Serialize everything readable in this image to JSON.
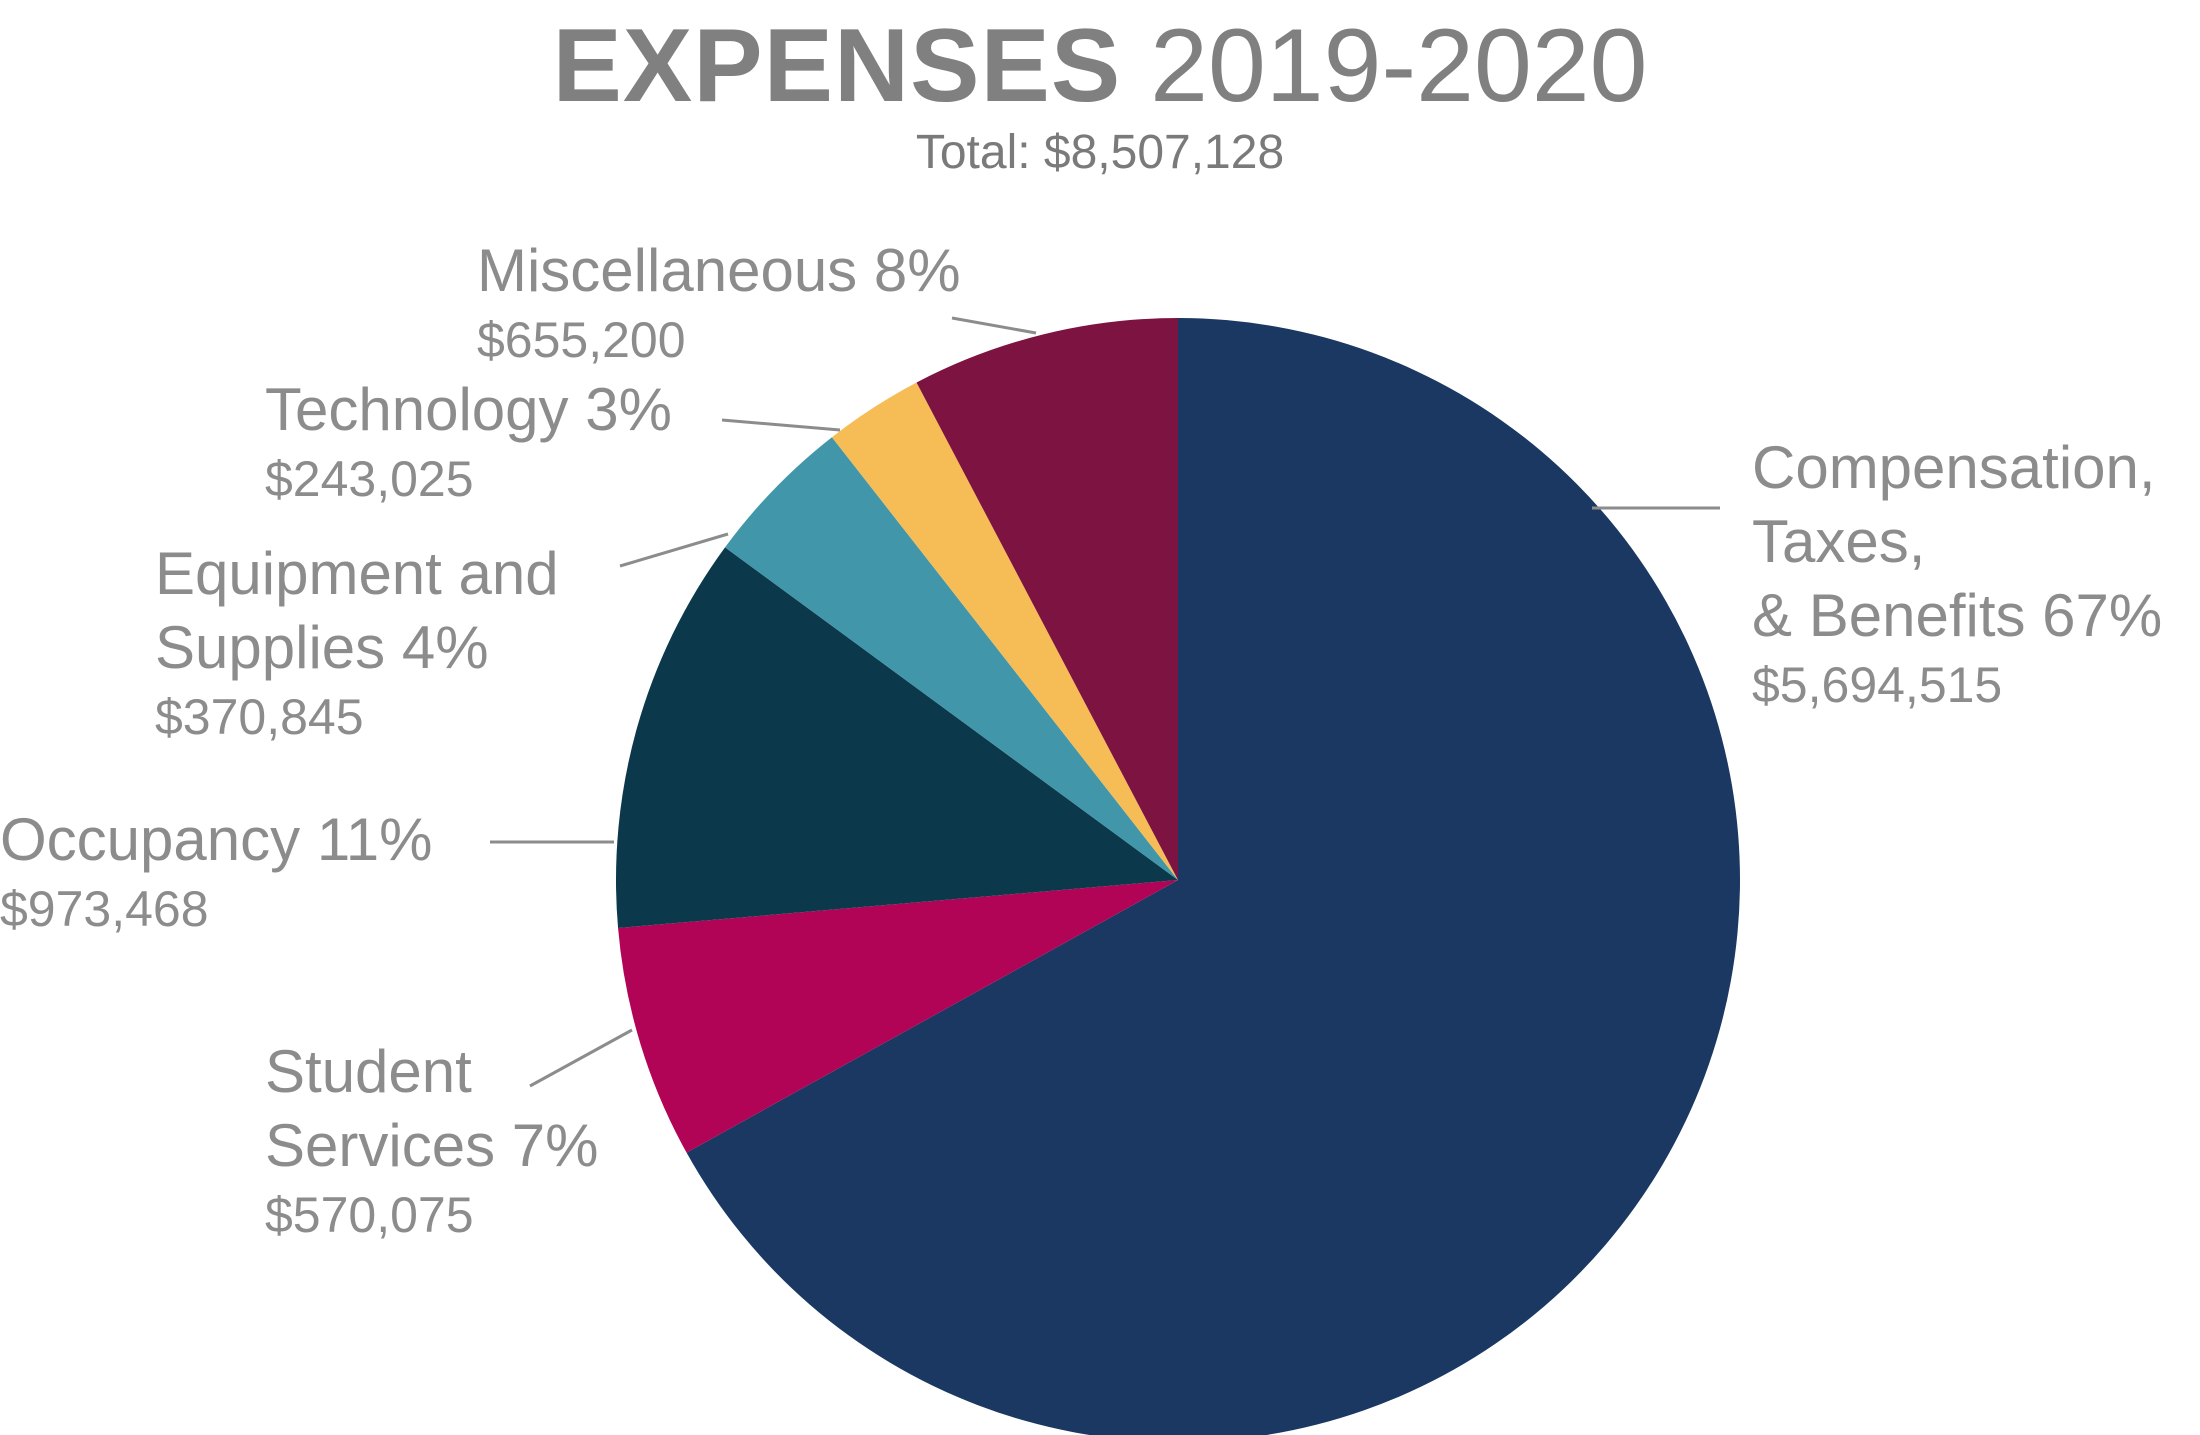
{
  "title": {
    "bold": "EXPENSES",
    "light": "2019-2020"
  },
  "subtitle": "Total: $8,507,128",
  "chart_data": {
    "type": "pie",
    "title": "EXPENSES 2019-2020",
    "subtitle": "Total: $8,507,128",
    "start_angle_deg": 0,
    "direction": "clockwise",
    "slices": [
      {
        "id": "compensation",
        "label_lines": [
          "Compensation,",
          "Taxes,",
          "& Benefits 67%"
        ],
        "percent": "67%",
        "amount": "$5,694,515",
        "value": 5694515,
        "color": "#1a3862"
      },
      {
        "id": "student",
        "label_lines": [
          "Student",
          "Services 7%"
        ],
        "percent": "7%",
        "amount": "$570,075",
        "value": 570075,
        "color": "#b10456"
      },
      {
        "id": "occupancy",
        "label_lines": [
          "Occupancy 11%"
        ],
        "percent": "11%",
        "amount": "$973,468",
        "value": 973468,
        "color": "#0b394b"
      },
      {
        "id": "equipment",
        "label_lines": [
          "Equipment and",
          "Supplies 4%"
        ],
        "percent": "4%",
        "amount": "$370,845",
        "value": 370845,
        "color": "#4197a9"
      },
      {
        "id": "technology",
        "label_lines": [
          "Technology 3%"
        ],
        "percent": "3%",
        "amount": "$243,025",
        "value": 243025,
        "color": "#f6bd56"
      },
      {
        "id": "misc",
        "label_lines": [
          "Miscellaneous 8%"
        ],
        "percent": "8%",
        "amount": "$655,200",
        "value": 655200,
        "color": "#7d1340"
      }
    ]
  }
}
